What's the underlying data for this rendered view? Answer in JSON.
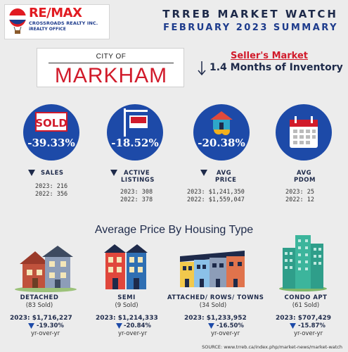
{
  "header": {
    "brand_name": "RE/MAX",
    "brand_sub": "CROSSROADS REALTY INC.",
    "brand_office": "iREALTY OFFICE",
    "title": "TRREB MARKET WATCH",
    "subtitle": "FEBRUARY 2023 SUMMARY"
  },
  "city": {
    "prefix": "CITY OF",
    "name": "MARKHAM"
  },
  "market": {
    "type": "Seller's Market",
    "inventory": "1.4 Months of Inventory"
  },
  "stats": [
    {
      "pct": "-39.33%",
      "label1": "SALES",
      "label2": "",
      "val2023": "2023: 216",
      "val2022": "2022: 356",
      "icon_text": "SOLD"
    },
    {
      "pct": "-18.52%",
      "label1": "ACTIVE",
      "label2": "LISTINGS",
      "val2023": "2023: 308",
      "val2022": "2022: 378",
      "icon_text": ""
    },
    {
      "pct": "-20.38%",
      "label1": "AVG",
      "label2": "PRICE",
      "val2023": "2023: $1,241,350",
      "val2022": "2022: $1,559,047",
      "icon_text": ""
    },
    {
      "pct": "",
      "label1": "AVG",
      "label2": "PDOM",
      "val2023": "2023: 25",
      "val2022": "2022: 12",
      "icon_text": ""
    }
  ],
  "section_title": "Average Price By Housing Type",
  "housing": [
    {
      "type": "DETACHED",
      "sold": "(83 Sold)",
      "price": "2023: $1,716,227",
      "change": "-19.30%",
      "yoy": "yr-over-yr"
    },
    {
      "type": "SEMI",
      "sold": "(9 Sold)",
      "price": "2023: $1,214,333",
      "change": "-20.84%",
      "yoy": "yr-over-yr"
    },
    {
      "type": "ATTACHED/ ROWS/ TOWNS",
      "sold": "(34 Sold)",
      "price": "2023: $1,233,952",
      "change": "-16.50%",
      "yoy": "yr-over-yr"
    },
    {
      "type": "CONDO APT",
      "sold": "(61 Sold)",
      "price": "2023: $707,429",
      "change": "-15.87%",
      "yoy": "yr-over-yr"
    }
  ],
  "source": "SOURCE:  www.trreb.ca/index.php/market-news/market-watch",
  "colors": {
    "navy": "#1e2a4a",
    "circle_blue": "#1d4aa8",
    "red": "#d11b2b",
    "background": "#ececec"
  },
  "icons": {
    "logo": "remax-balloon-icon",
    "arrow": "arrow-down-icon",
    "sold": "sold-sign-icon",
    "listing": "listing-sign-icon",
    "price": "house-price-icon",
    "pdom": "calendar-icon",
    "detached": "detached-house-icon",
    "semi": "semi-house-icon",
    "townhouse": "townhouse-icon",
    "condo": "condo-tower-icon",
    "down": "down-triangle-icon"
  }
}
